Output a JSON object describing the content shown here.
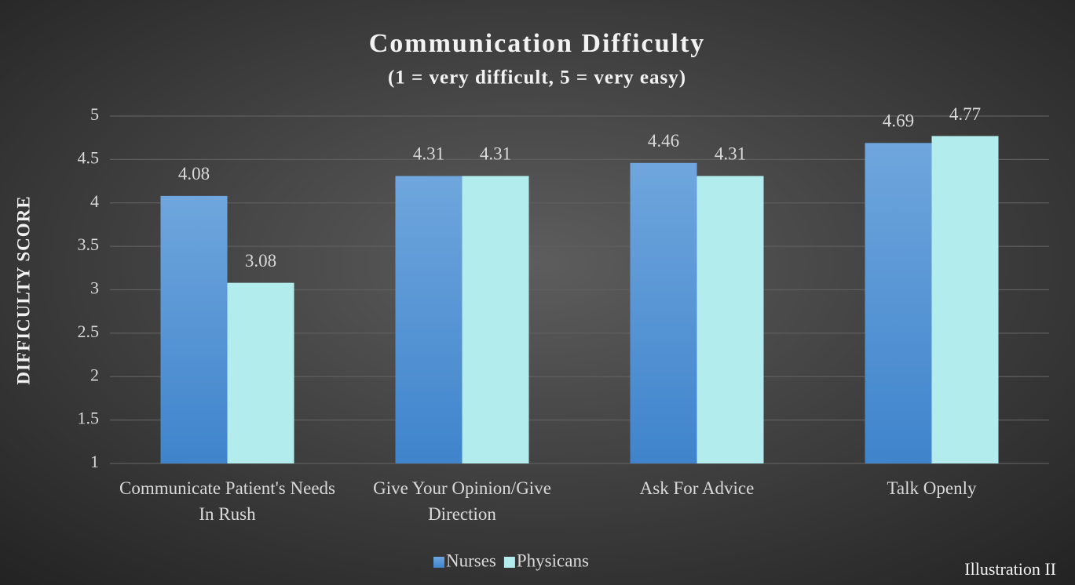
{
  "chart_data": {
    "type": "bar",
    "title": "Communication Difficulty",
    "subtitle": "(1 = very difficult, 5 = very easy)",
    "y_label": "DIFFICULTY SCORE",
    "annotation": "Illustration II",
    "categories": [
      "Communicate Patient's Needs In Rush",
      "Give Your Opinion/Give Direction",
      "Ask For Advice",
      "Talk Openly"
    ],
    "series": [
      {
        "name": "Nurses",
        "color": "#5b9bd5",
        "values": [
          4.08,
          4.31,
          4.46,
          4.69
        ]
      },
      {
        "name": "Physicans",
        "color": "#b2ecec",
        "values": [
          3.08,
          4.31,
          4.31,
          4.77
        ]
      }
    ],
    "ylim": [
      1,
      5
    ],
    "yticks": [
      1,
      1.5,
      2,
      2.5,
      3,
      3.5,
      4,
      4.5,
      5
    ],
    "grid": true,
    "legend": "bottom"
  }
}
